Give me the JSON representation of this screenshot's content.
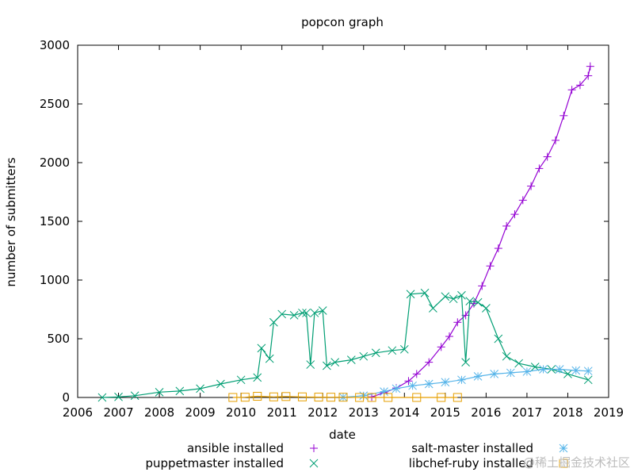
{
  "chart_data": {
    "type": "line",
    "title": "popcon graph",
    "xlabel": "date",
    "ylabel": "number of submitters",
    "xlim": [
      2006,
      2019
    ],
    "ylim": [
      0,
      3000
    ],
    "x_ticks": [
      "2006",
      "2007",
      "2008",
      "2009",
      "2010",
      "2011",
      "2012",
      "2013",
      "2014",
      "2015",
      "2016",
      "2017",
      "2018",
      "2019"
    ],
    "y_ticks": [
      "0",
      "500",
      "1000",
      "1500",
      "2000",
      "2500",
      "3000"
    ],
    "grid": false,
    "legend_position": "bottom",
    "series": [
      {
        "name": "ansible installed",
        "color": "#9400d3",
        "marker": "plus",
        "points": [
          [
            2013.2,
            5
          ],
          [
            2013.5,
            40
          ],
          [
            2013.8,
            80
          ],
          [
            2014.1,
            140
          ],
          [
            2014.3,
            200
          ],
          [
            2014.6,
            300
          ],
          [
            2014.9,
            430
          ],
          [
            2015.1,
            520
          ],
          [
            2015.3,
            640
          ],
          [
            2015.5,
            700
          ],
          [
            2015.7,
            800
          ],
          [
            2015.9,
            950
          ],
          [
            2016.1,
            1120
          ],
          [
            2016.3,
            1270
          ],
          [
            2016.5,
            1460
          ],
          [
            2016.7,
            1560
          ],
          [
            2016.9,
            1680
          ],
          [
            2017.1,
            1800
          ],
          [
            2017.3,
            1950
          ],
          [
            2017.5,
            2050
          ],
          [
            2017.7,
            2190
          ],
          [
            2017.9,
            2400
          ],
          [
            2018.1,
            2620
          ],
          [
            2018.3,
            2660
          ],
          [
            2018.5,
            2740
          ],
          [
            2018.55,
            2820
          ]
        ]
      },
      {
        "name": "puppetmaster installed",
        "color": "#009e73",
        "marker": "cross",
        "points": [
          [
            2006.6,
            0
          ],
          [
            2007.0,
            5
          ],
          [
            2007.4,
            15
          ],
          [
            2008.0,
            45
          ],
          [
            2008.5,
            55
          ],
          [
            2009.0,
            75
          ],
          [
            2009.5,
            115
          ],
          [
            2010.0,
            150
          ],
          [
            2010.4,
            170
          ],
          [
            2010.5,
            420
          ],
          [
            2010.7,
            330
          ],
          [
            2010.8,
            640
          ],
          [
            2011.0,
            710
          ],
          [
            2011.3,
            700
          ],
          [
            2011.5,
            720
          ],
          [
            2011.6,
            720
          ],
          [
            2011.7,
            280
          ],
          [
            2011.8,
            720
          ],
          [
            2012.0,
            740
          ],
          [
            2012.1,
            270
          ],
          [
            2012.3,
            300
          ],
          [
            2012.7,
            320
          ],
          [
            2013.0,
            350
          ],
          [
            2013.3,
            380
          ],
          [
            2013.7,
            400
          ],
          [
            2014.0,
            410
          ],
          [
            2014.15,
            880
          ],
          [
            2014.5,
            890
          ],
          [
            2014.7,
            760
          ],
          [
            2015.0,
            860
          ],
          [
            2015.2,
            840
          ],
          [
            2015.4,
            870
          ],
          [
            2015.5,
            300
          ],
          [
            2015.6,
            820
          ],
          [
            2015.8,
            810
          ],
          [
            2016.0,
            760
          ],
          [
            2016.3,
            500
          ],
          [
            2016.5,
            350
          ],
          [
            2016.8,
            290
          ],
          [
            2017.2,
            260
          ],
          [
            2017.6,
            240
          ],
          [
            2018.0,
            200
          ],
          [
            2018.5,
            150
          ]
        ]
      },
      {
        "name": "salt-master installed",
        "color": "#56b4e9",
        "marker": "star",
        "points": [
          [
            2012.5,
            2
          ],
          [
            2013.0,
            15
          ],
          [
            2013.5,
            50
          ],
          [
            2013.8,
            75
          ],
          [
            2014.2,
            100
          ],
          [
            2014.6,
            115
          ],
          [
            2015.0,
            130
          ],
          [
            2015.4,
            150
          ],
          [
            2015.8,
            180
          ],
          [
            2016.2,
            200
          ],
          [
            2016.6,
            210
          ],
          [
            2017.0,
            220
          ],
          [
            2017.4,
            240
          ],
          [
            2017.8,
            240
          ],
          [
            2018.2,
            230
          ],
          [
            2018.5,
            225
          ]
        ]
      },
      {
        "name": "libchef-ruby installed",
        "color": "#e69f00",
        "marker": "square",
        "points": [
          [
            2009.8,
            0
          ],
          [
            2010.1,
            2
          ],
          [
            2010.4,
            10
          ],
          [
            2010.8,
            5
          ],
          [
            2011.1,
            8
          ],
          [
            2011.5,
            5
          ],
          [
            2011.9,
            3
          ],
          [
            2012.2,
            2
          ],
          [
            2012.5,
            2
          ],
          [
            2012.9,
            0
          ],
          [
            2013.2,
            0
          ],
          [
            2013.6,
            0
          ],
          [
            2014.3,
            0
          ],
          [
            2014.9,
            0
          ],
          [
            2015.3,
            0
          ]
        ]
      }
    ]
  },
  "watermark": "@稀土掘金技术社区"
}
